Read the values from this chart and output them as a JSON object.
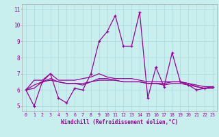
{
  "xlabel": "Windchill (Refroidissement éolien,°C)",
  "background_color": "#c8eeee",
  "grid_color": "#b0dde0",
  "line_color": "#990099",
  "xlim": [
    -0.5,
    23.5
  ],
  "ylim": [
    4.7,
    11.3
  ],
  "yticks": [
    5,
    6,
    7,
    8,
    9,
    10,
    11
  ],
  "xticks": [
    0,
    1,
    2,
    3,
    4,
    5,
    6,
    7,
    8,
    9,
    10,
    11,
    12,
    13,
    14,
    15,
    16,
    17,
    18,
    19,
    20,
    21,
    22,
    23
  ],
  "series1": [
    6.0,
    5.0,
    6.5,
    7.0,
    5.5,
    5.2,
    6.1,
    6.0,
    7.0,
    9.0,
    9.6,
    10.6,
    8.7,
    8.7,
    10.8,
    5.5,
    7.4,
    6.2,
    8.3,
    6.5,
    6.3,
    6.0,
    6.1,
    6.2
  ],
  "series2": [
    6.0,
    6.6,
    6.6,
    7.0,
    6.6,
    6.6,
    6.6,
    6.7,
    6.8,
    7.0,
    6.8,
    6.7,
    6.7,
    6.7,
    6.6,
    6.5,
    6.5,
    6.5,
    6.5,
    6.5,
    6.4,
    6.3,
    6.2,
    6.2
  ],
  "series3": [
    6.0,
    6.1,
    6.5,
    6.6,
    6.5,
    6.4,
    6.4,
    6.3,
    6.5,
    6.6,
    6.6,
    6.6,
    6.5,
    6.5,
    6.5,
    6.4,
    6.4,
    6.3,
    6.4,
    6.4,
    6.3,
    6.2,
    6.1,
    6.1
  ],
  "series4": [
    6.0,
    6.3,
    6.5,
    6.7,
    6.5,
    6.4,
    6.4,
    6.4,
    6.5,
    6.7,
    6.7,
    6.6,
    6.5,
    6.5,
    6.5,
    6.4,
    6.4,
    6.4,
    6.5,
    6.5,
    6.4,
    6.2,
    6.1,
    6.2
  ]
}
